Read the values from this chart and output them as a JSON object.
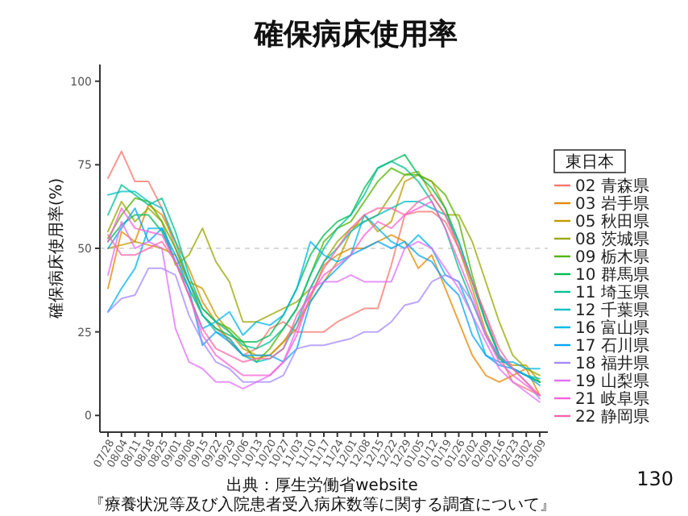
{
  "chart_data": {
    "type": "line",
    "title": "確保病床使用率",
    "ylabel": "確保病床使用率(%)",
    "legend_title": "東日本",
    "legend": "right",
    "grid": false,
    "line_style": "solid",
    "marker": "none",
    "categories": [
      "07/28",
      "08/04",
      "08/11",
      "08/18",
      "08/25",
      "09/01",
      "09/08",
      "09/15",
      "09/22",
      "09/29",
      "10/06",
      "10/13",
      "10/20",
      "10/27",
      "11/03",
      "11/10",
      "11/17",
      "11/24",
      "12/01",
      "12/08",
      "12/15",
      "12/22",
      "12/29",
      "01/05",
      "01/12",
      "01/19",
      "01/26",
      "02/02",
      "02/09",
      "02/16",
      "02/23",
      "03/02",
      "03/09"
    ],
    "ylim": [
      -5,
      105
    ],
    "yticks": [
      0,
      25,
      50,
      75,
      100
    ],
    "ref_lines": [
      {
        "axis": "y",
        "value": 50,
        "color": "#d9d9d9",
        "line_style": "dashed"
      }
    ],
    "series": [
      {
        "name": "02 青森県",
        "color": "#f8766d",
        "values": [
          71,
          79,
          70,
          70,
          62,
          50,
          40,
          30,
          26,
          23,
          18,
          20,
          26,
          28,
          25,
          25,
          25,
          28,
          30,
          32,
          32,
          45,
          60,
          61,
          61,
          58,
          50,
          40,
          30,
          18,
          10,
          8,
          6
        ]
      },
      {
        "name": "03 岩手県",
        "color": "#e38900",
        "values": [
          38,
          55,
          52,
          63,
          60,
          52,
          44,
          34,
          28,
          22,
          18,
          17,
          18,
          22,
          26,
          35,
          45,
          48,
          50,
          50,
          52,
          54,
          52,
          44,
          48,
          38,
          28,
          18,
          12,
          10,
          12,
          14,
          6
        ]
      },
      {
        "name": "05 秋田県",
        "color": "#c49a00",
        "values": [
          50,
          51,
          52,
          51,
          50,
          48,
          40,
          38,
          30,
          25,
          20,
          18,
          18,
          22,
          28,
          34,
          40,
          46,
          55,
          60,
          55,
          58,
          70,
          72,
          70,
          62,
          50,
          38,
          25,
          17,
          15,
          15,
          10
        ]
      },
      {
        "name": "08 茨城県",
        "color": "#99a800",
        "values": [
          55,
          64,
          58,
          62,
          58,
          45,
          48,
          56,
          46,
          40,
          28,
          28,
          30,
          32,
          34,
          38,
          46,
          52,
          56,
          58,
          60,
          66,
          72,
          73,
          66,
          60,
          60,
          52,
          40,
          28,
          18,
          14,
          12
        ]
      },
      {
        "name": "09 栃木県",
        "color": "#53b400",
        "values": [
          53,
          60,
          65,
          64,
          58,
          50,
          40,
          32,
          28,
          26,
          22,
          16,
          20,
          26,
          32,
          42,
          52,
          56,
          58,
          64,
          70,
          74,
          72,
          72,
          70,
          66,
          58,
          42,
          28,
          18,
          14,
          12,
          10
        ]
      },
      {
        "name": "10 群馬県",
        "color": "#00bc56",
        "values": [
          52,
          57,
          60,
          60,
          55,
          46,
          38,
          30,
          26,
          24,
          22,
          22,
          24,
          30,
          38,
          48,
          54,
          58,
          60,
          68,
          74,
          76,
          78,
          72,
          68,
          62,
          52,
          40,
          28,
          18,
          14,
          12,
          10
        ]
      },
      {
        "name": "11 埼玉県",
        "color": "#00c094",
        "values": [
          60,
          69,
          66,
          63,
          65,
          55,
          42,
          32,
          28,
          25,
          21,
          20,
          22,
          26,
          32,
          42,
          50,
          56,
          60,
          66,
          74,
          76,
          74,
          70,
          64,
          56,
          44,
          34,
          24,
          17,
          14,
          12,
          10
        ]
      },
      {
        "name": "12 千葉県",
        "color": "#00bfc4",
        "values": [
          66,
          67,
          67,
          64,
          62,
          52,
          40,
          30,
          25,
          23,
          18,
          16,
          17,
          20,
          28,
          38,
          46,
          50,
          55,
          58,
          60,
          62,
          64,
          64,
          62,
          60,
          52,
          40,
          28,
          18,
          14,
          12,
          11
        ]
      },
      {
        "name": "16 富山県",
        "color": "#00b6eb",
        "values": [
          31,
          38,
          44,
          56,
          56,
          46,
          36,
          26,
          28,
          31,
          24,
          28,
          27,
          30,
          38,
          52,
          48,
          46,
          48,
          60,
          56,
          52,
          50,
          54,
          50,
          42,
          40,
          30,
          18,
          16,
          16,
          14,
          14
        ]
      },
      {
        "name": "17 石川県",
        "color": "#06a4ff",
        "values": [
          50,
          56,
          62,
          52,
          56,
          48,
          38,
          21,
          25,
          22,
          18,
          18,
          18,
          16,
          20,
          34,
          40,
          44,
          48,
          50,
          52,
          50,
          52,
          48,
          46,
          40,
          36,
          24,
          18,
          15,
          14,
          12,
          9
        ]
      },
      {
        "name": "18 福井県",
        "color": "#a58aff",
        "values": [
          31,
          35,
          36,
          44,
          44,
          42,
          30,
          22,
          16,
          14,
          10,
          10,
          10,
          12,
          20,
          21,
          21,
          22,
          23,
          25,
          25,
          28,
          33,
          34,
          40,
          42,
          40,
          34,
          24,
          18,
          14,
          10,
          5
        ]
      },
      {
        "name": "19 山梨県",
        "color": "#df70f8",
        "values": [
          42,
          58,
          50,
          52,
          50,
          26,
          16,
          14,
          10,
          10,
          8,
          10,
          12,
          16,
          26,
          38,
          40,
          40,
          42,
          40,
          40,
          40,
          50,
          52,
          50,
          44,
          38,
          30,
          22,
          14,
          10,
          7,
          4
        ]
      },
      {
        "name": "21 岐阜県",
        "color": "#fb61d7",
        "values": [
          52,
          62,
          56,
          55,
          54,
          46,
          36,
          24,
          18,
          15,
          12,
          12,
          12,
          16,
          24,
          36,
          42,
          45,
          48,
          54,
          58,
          56,
          60,
          62,
          64,
          56,
          46,
          36,
          24,
          16,
          12,
          9,
          6
        ]
      },
      {
        "name": "22 静岡県",
        "color": "#ff66a8",
        "values": [
          54,
          48,
          48,
          50,
          52,
          46,
          36,
          26,
          20,
          18,
          16,
          17,
          17,
          20,
          30,
          36,
          44,
          50,
          56,
          60,
          62,
          62,
          60,
          64,
          66,
          60,
          50,
          40,
          30,
          20,
          14,
          10,
          6
        ]
      }
    ],
    "annotations": [
      "出典：厚生労働省website",
      "『療養状況等及び入院患者受入病床数等に関する調査について』",
      "130"
    ]
  }
}
